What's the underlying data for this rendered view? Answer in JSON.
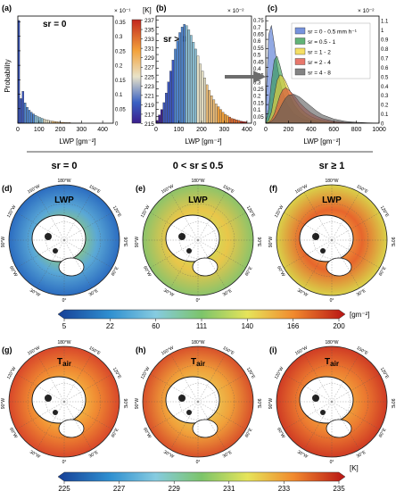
{
  "figure": {
    "top_row": {
      "a": {
        "label": "(a)",
        "condition": "sr = 0",
        "ylabel": "Probability",
        "xlabel": "LWP [gm⁻²]",
        "y_multiplier": "× 10⁻¹",
        "xticks": [
          "0",
          "100",
          "200",
          "300",
          "400"
        ],
        "yticks": [
          "0",
          "0.05",
          "0.1",
          "0.15",
          "0.2",
          "0.25",
          "0.3",
          "0.35"
        ]
      },
      "colorbar_T": {
        "unit": "[K]",
        "ticks": [
          "215",
          "217",
          "219",
          "221",
          "223",
          "225",
          "227",
          "229",
          "231",
          "233",
          "235",
          "237"
        ]
      },
      "b": {
        "label": "(b)",
        "condition": "sr > 0",
        "xlabel": "LWP [gm⁻²]",
        "y_multiplier": "× 10⁻²",
        "xticks": [
          "0",
          "100",
          "200",
          "300",
          "400"
        ],
        "yticks": [
          "0",
          "0.05",
          "0.1",
          "0.15",
          "0.2",
          "0.25",
          "0.3",
          "0.35",
          "0.4",
          "0.45",
          "0.5",
          "0.55",
          "0.6",
          "0.65",
          "0.7",
          "0.75"
        ]
      },
      "c": {
        "label": "(c)",
        "xlabel": "LWP [gm⁻²]",
        "y_multiplier": "× 10⁻²",
        "xticks": [
          "0",
          "200",
          "400",
          "600",
          "800",
          "1000"
        ],
        "yticks": [
          "0",
          "0.1",
          "0.2",
          "0.3",
          "0.4",
          "0.5",
          "0.6",
          "0.7",
          "0.8",
          "0.9",
          "1",
          "1.1"
        ],
        "legend": [
          "sr = 0 - 0.5 mm h⁻¹",
          "sr = 0.5 - 1",
          "sr = 1 - 2",
          "sr = 2 - 4",
          "sr = 4 - 8"
        ]
      }
    },
    "column_titles": [
      "sr = 0",
      "0 < sr ≤ 0.5",
      "sr ≥ 1"
    ],
    "maps": {
      "lwp_panels": [
        {
          "label": "(d)",
          "title": "LWP"
        },
        {
          "label": "(e)",
          "title": "LWP"
        },
        {
          "label": "(f)",
          "title": "LWP"
        }
      ],
      "tair_panels": [
        {
          "label": "(g)",
          "title": "T",
          "subscript": "air"
        },
        {
          "label": "(h)",
          "title": "T",
          "subscript": "air"
        },
        {
          "label": "(i)",
          "title": "T",
          "subscript": "air"
        }
      ],
      "lon_labels": [
        "180°W",
        "150°W",
        "150°E",
        "120°W",
        "120°E",
        "90°W",
        "90°E",
        "60°W",
        "60°E",
        "30°W",
        "30°E",
        "0°"
      ],
      "colorbar_lwp": {
        "ticks": [
          "5",
          "22",
          "60",
          "111",
          "140",
          "166",
          "200"
        ],
        "unit": "[gm⁻²]"
      },
      "colorbar_tair": {
        "ticks": [
          "225",
          "227",
          "229",
          "231",
          "233",
          "235"
        ],
        "unit": "[K]"
      }
    }
  },
  "chart_data": [
    {
      "panel": "a",
      "type": "bar",
      "condition": "sr = 0",
      "xlabel": "LWP [gm⁻²]",
      "ylabel": "Probability",
      "xlim": [
        0,
        450
      ],
      "ylim": [
        0,
        0.37
      ],
      "y_multiplier": "10^-1",
      "bin_width": 10,
      "x": [
        5,
        15,
        25,
        35,
        45,
        55,
        65,
        75,
        85,
        95,
        105,
        115,
        125,
        135,
        145,
        155,
        165,
        175,
        185,
        195,
        205,
        215,
        225,
        235,
        245,
        255,
        265,
        275,
        285,
        295
      ],
      "values": [
        0.355,
        0.085,
        0.11,
        0.07,
        0.055,
        0.045,
        0.038,
        0.032,
        0.027,
        0.023,
        0.02,
        0.017,
        0.014,
        0.012,
        0.01,
        0.008,
        0.007,
        0.006,
        0.005,
        0.004,
        0.003,
        0.003,
        0.002,
        0.002,
        0.002,
        0.001,
        0.001,
        0.001,
        0.001,
        0.001
      ],
      "colorscale": "temperature 215-237 K"
    },
    {
      "panel": "b",
      "type": "bar",
      "condition": "sr > 0",
      "xlabel": "LWP [gm⁻²]",
      "xlim": [
        0,
        420
      ],
      "ylim": [
        0,
        0.78
      ],
      "y_multiplier": "10^-2",
      "bin_width": 10,
      "x": [
        5,
        15,
        25,
        35,
        45,
        55,
        65,
        75,
        85,
        95,
        105,
        115,
        125,
        135,
        145,
        155,
        165,
        175,
        185,
        195,
        205,
        215,
        225,
        235,
        245,
        255,
        265,
        275,
        285,
        295,
        305,
        315,
        325,
        335,
        345,
        355,
        365,
        375,
        385,
        395
      ],
      "values": [
        0.02,
        0.06,
        0.1,
        0.15,
        0.22,
        0.3,
        0.38,
        0.46,
        0.54,
        0.6,
        0.66,
        0.7,
        0.72,
        0.71,
        0.68,
        0.64,
        0.59,
        0.54,
        0.49,
        0.43,
        0.38,
        0.33,
        0.28,
        0.24,
        0.2,
        0.17,
        0.14,
        0.12,
        0.1,
        0.08,
        0.065,
        0.055,
        0.045,
        0.035,
        0.03,
        0.025,
        0.02,
        0.015,
        0.012,
        0.01
      ],
      "colorscale": "temperature 215-237 K"
    },
    {
      "panel": "c",
      "type": "area",
      "xlabel": "LWP [gm⁻²]",
      "xlim": [
        0,
        1000
      ],
      "ylim": [
        0,
        1.15
      ],
      "y_multiplier": "10^-2",
      "x": [
        0,
        25,
        50,
        75,
        100,
        125,
        150,
        175,
        200,
        250,
        300,
        350,
        400,
        450,
        500,
        600,
        700,
        800,
        900,
        1000
      ],
      "series": [
        {
          "name": "sr = 0 - 0.5 mm h⁻¹",
          "color": "#4a6fd1",
          "values": [
            0.15,
            0.95,
            1.05,
            0.85,
            0.62,
            0.45,
            0.33,
            0.24,
            0.18,
            0.1,
            0.06,
            0.035,
            0.02,
            0.012,
            0.008,
            0.004,
            0.002,
            0.001,
            0.0,
            0.0
          ]
        },
        {
          "name": "sr = 0.5 - 1",
          "color": "#2e9a4a",
          "values": [
            0.02,
            0.15,
            0.45,
            0.68,
            0.72,
            0.62,
            0.5,
            0.4,
            0.32,
            0.2,
            0.12,
            0.07,
            0.04,
            0.025,
            0.015,
            0.006,
            0.003,
            0.001,
            0.0,
            0.0
          ]
        },
        {
          "name": "sr = 1 - 2",
          "color": "#f2d430",
          "values": [
            0.0,
            0.03,
            0.12,
            0.3,
            0.46,
            0.52,
            0.5,
            0.45,
            0.38,
            0.26,
            0.17,
            0.11,
            0.07,
            0.045,
            0.03,
            0.012,
            0.005,
            0.002,
            0.001,
            0.0
          ]
        },
        {
          "name": "sr = 2 - 4",
          "color": "#e04a3a",
          "values": [
            0.0,
            0.01,
            0.04,
            0.1,
            0.2,
            0.3,
            0.36,
            0.38,
            0.36,
            0.3,
            0.22,
            0.16,
            0.11,
            0.075,
            0.05,
            0.022,
            0.01,
            0.004,
            0.002,
            0.0
          ]
        },
        {
          "name": "sr = 4 - 8",
          "color": "#5a5a5a",
          "values": [
            0.0,
            0.005,
            0.02,
            0.05,
            0.1,
            0.16,
            0.22,
            0.27,
            0.3,
            0.31,
            0.28,
            0.23,
            0.18,
            0.13,
            0.09,
            0.045,
            0.02,
            0.01,
            0.004,
            0.001
          ]
        }
      ]
    }
  ]
}
